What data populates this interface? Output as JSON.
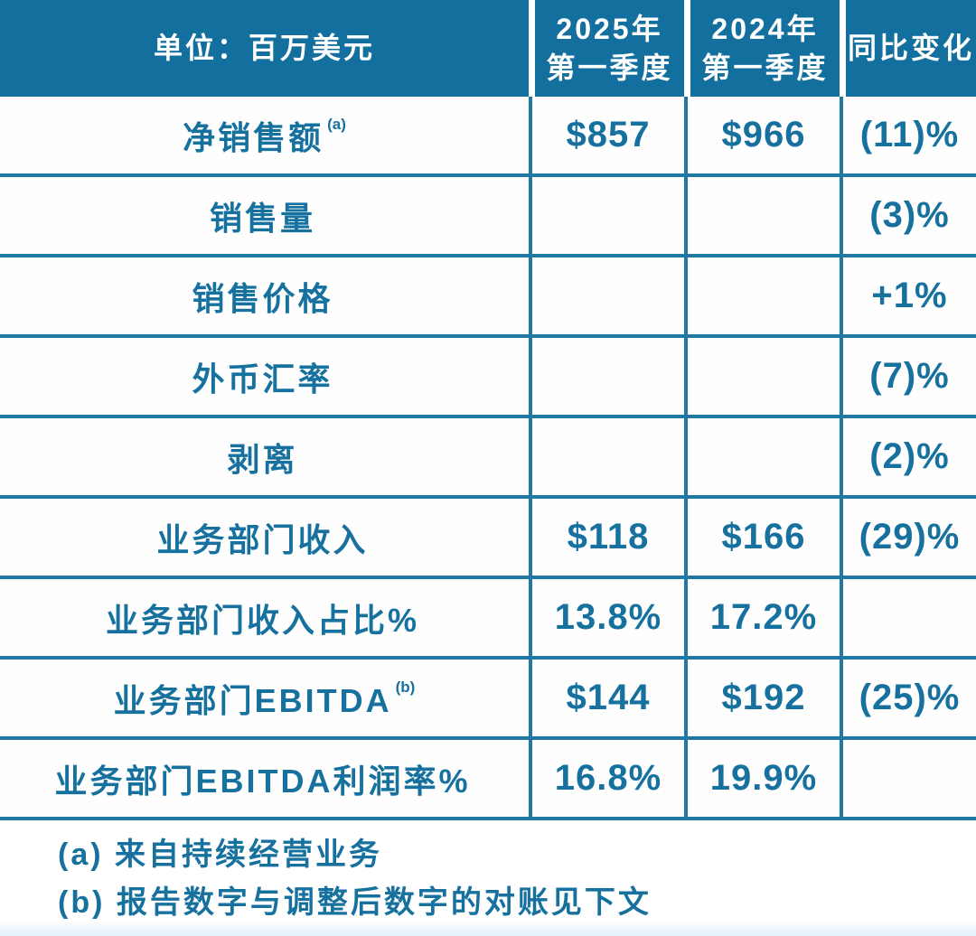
{
  "colors": {
    "header_bg": "#136f9e",
    "grid_line": "#1f79a4",
    "text_blue": "#17719f",
    "header_text": "#ffffff",
    "page_bg": "#ffffff"
  },
  "header": {
    "unit_label": "单位：百万美元",
    "col_2025_line1": "2025年",
    "col_2025_line2": "第一季度",
    "col_2024_line1": "2024年",
    "col_2024_line2": "第一季度",
    "col_yoy": "同比变化"
  },
  "chart_data": {
    "type": "table",
    "title": "单位：百万美元",
    "columns": [
      "单位：百万美元",
      "2025年第一季度",
      "2024年第一季度",
      "同比变化"
    ],
    "rows": [
      {
        "label": "净销售额",
        "sup": "(a)",
        "q1_2025": "$857",
        "q1_2024": "$966",
        "yoy": "(11)%"
      },
      {
        "label": "销售量",
        "sup": "",
        "q1_2025": "",
        "q1_2024": "",
        "yoy": "(3)%"
      },
      {
        "label": "销售价格",
        "sup": "",
        "q1_2025": "",
        "q1_2024": "",
        "yoy": "+1%"
      },
      {
        "label": "外币汇率",
        "sup": "",
        "q1_2025": "",
        "q1_2024": "",
        "yoy": "(7)%"
      },
      {
        "label": "剥离",
        "sup": "",
        "q1_2025": "",
        "q1_2024": "",
        "yoy": "(2)%"
      },
      {
        "label": "业务部门收入",
        "sup": "",
        "q1_2025": "$118",
        "q1_2024": "$166",
        "yoy": "(29)%"
      },
      {
        "label": "业务部门收入占比%",
        "sup": "",
        "q1_2025": "13.8%",
        "q1_2024": "17.2%",
        "yoy": ""
      },
      {
        "label": "业务部门EBITDA",
        "sup": "(b)",
        "q1_2025": "$144",
        "q1_2024": "$192",
        "yoy": "(25)%"
      },
      {
        "label": "业务部门EBITDA利润率%",
        "sup": "",
        "q1_2025": "16.8%",
        "q1_2024": "19.9%",
        "yoy": ""
      }
    ]
  },
  "footnotes": {
    "a": "(a) 来自持续经营业务",
    "b": "(b) 报告数字与调整后数字的对账见下文"
  }
}
